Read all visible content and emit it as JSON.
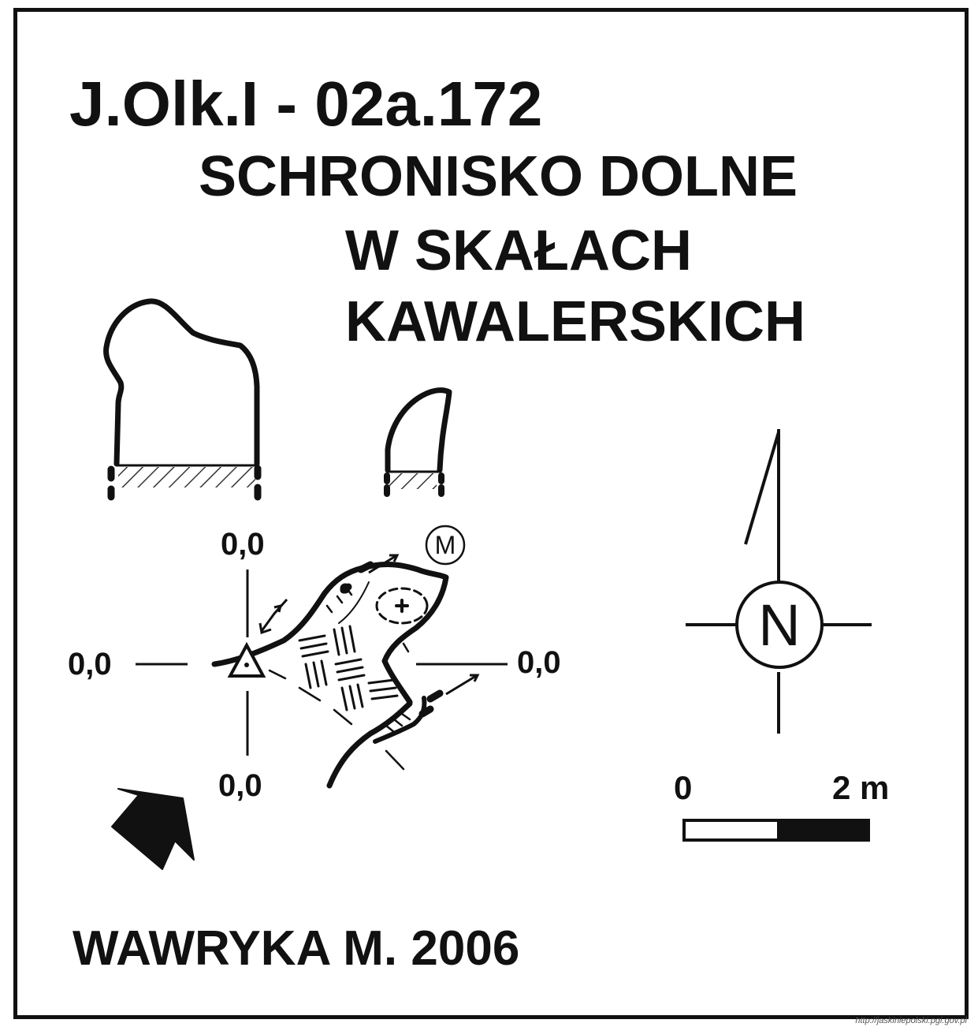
{
  "title": {
    "code": "J.Olk.I - 02a.172",
    "name_line1": "SCHRONISKO DOLNE",
    "name_line2": "W SKAŁACH",
    "name_line3": "KAWALERSKICH"
  },
  "datum_labels": {
    "top": "0,0",
    "left": "0,0",
    "right": "0,0",
    "bottom": "0,0"
  },
  "markers": {
    "measurement_point": "M"
  },
  "compass": {
    "north_label": "N"
  },
  "scale_bar": {
    "start_label": "0",
    "end_label": "2 m"
  },
  "author": "WAWRYKA M. 2006",
  "credit": "http://jaskiniepolski.pgi.gov.pl"
}
